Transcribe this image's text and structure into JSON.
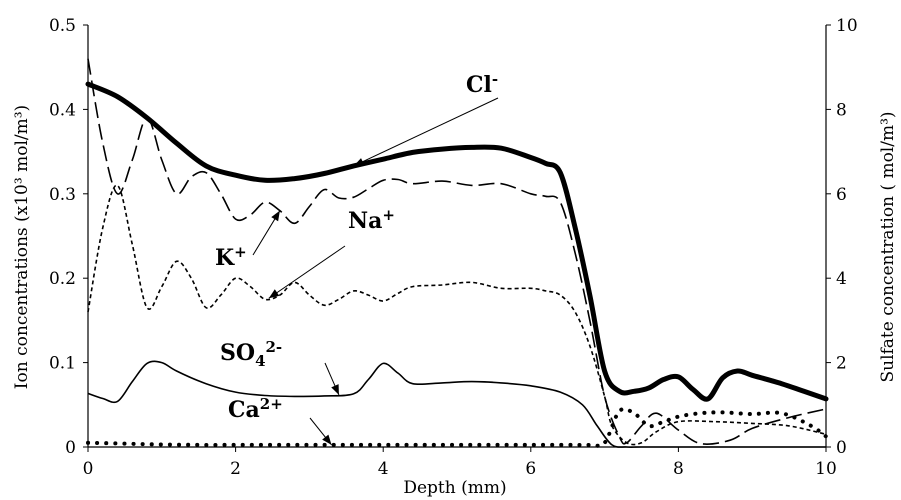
{
  "chart_data": {
    "type": "line",
    "xlabel": "Depth (mm)",
    "ylabel_left": "Ion concentrations (x10³ mol/m³)",
    "ylabel_right": "Sulfate concentration ( mol/m³)",
    "xlim": [
      0,
      10
    ],
    "ylim_left": [
      0,
      0.5
    ],
    "ylim_right": [
      0,
      10
    ],
    "x_ticks": [
      "0",
      "2",
      "4",
      "6",
      "8",
      "10"
    ],
    "y_ticks_left": [
      "0",
      "0.1",
      "0.2",
      "0.3",
      "0.4",
      "0.5"
    ],
    "y_ticks_right": [
      "0",
      "2",
      "4",
      "6",
      "8",
      "10"
    ],
    "grid": false,
    "legend": "none",
    "series": [
      {
        "name": "Cl-",
        "axis": "left",
        "style": "thick-solid",
        "x": [
          0,
          0.4,
          0.8,
          1.2,
          1.6,
          2.0,
          2.4,
          2.8,
          3.2,
          3.6,
          4.0,
          4.4,
          4.8,
          5.2,
          5.6,
          6.0,
          6.2,
          6.4,
          6.6,
          6.8,
          7.0,
          7.2,
          7.4,
          7.6,
          7.8,
          8.0,
          8.2,
          8.4,
          8.6,
          8.8,
          9.0,
          9.4,
          9.7,
          10.0
        ],
        "y": [
          0.43,
          0.415,
          0.39,
          0.36,
          0.333,
          0.322,
          0.316,
          0.318,
          0.324,
          0.333,
          0.341,
          0.349,
          0.353,
          0.355,
          0.354,
          0.343,
          0.336,
          0.325,
          0.26,
          0.18,
          0.09,
          0.066,
          0.066,
          0.07,
          0.08,
          0.083,
          0.068,
          0.057,
          0.082,
          0.09,
          0.085,
          0.075,
          0.066,
          0.057
        ]
      },
      {
        "name": "K+",
        "axis": "left",
        "style": "long-dash",
        "x": [
          0,
          0.2,
          0.4,
          0.6,
          0.8,
          1.0,
          1.2,
          1.4,
          1.6,
          1.8,
          2.0,
          2.2,
          2.4,
          2.6,
          2.8,
          3.0,
          3.2,
          3.4,
          3.6,
          3.8,
          4.0,
          4.2,
          4.4,
          4.8,
          5.2,
          5.6,
          6.0,
          6.2,
          6.4,
          6.6,
          6.8,
          7.0,
          7.2,
          7.3,
          7.5,
          7.7,
          8.0,
          8.3,
          8.7,
          9.0,
          9.5,
          10.0
        ],
        "y": [
          0.46,
          0.36,
          0.3,
          0.34,
          0.39,
          0.34,
          0.3,
          0.32,
          0.325,
          0.3,
          0.27,
          0.275,
          0.29,
          0.28,
          0.265,
          0.285,
          0.305,
          0.295,
          0.296,
          0.306,
          0.316,
          0.317,
          0.312,
          0.315,
          0.31,
          0.312,
          0.3,
          0.297,
          0.29,
          0.23,
          0.15,
          0.06,
          0.012,
          0.005,
          0.025,
          0.04,
          0.02,
          0.004,
          0.008,
          0.022,
          0.035,
          0.045
        ]
      },
      {
        "name": "Na+",
        "axis": "left",
        "style": "short-dash",
        "x": [
          0,
          0.2,
          0.4,
          0.6,
          0.8,
          1.0,
          1.2,
          1.4,
          1.6,
          1.8,
          2.0,
          2.2,
          2.4,
          2.6,
          2.8,
          3.0,
          3.2,
          3.4,
          3.6,
          3.8,
          4.0,
          4.2,
          4.4,
          4.8,
          5.2,
          5.6,
          6.0,
          6.2,
          6.4,
          6.6,
          6.8,
          7.0,
          7.1,
          7.3,
          7.5,
          7.7,
          8.0,
          8.5,
          9.0,
          9.5,
          10.0
        ],
        "y": [
          0.16,
          0.26,
          0.31,
          0.24,
          0.165,
          0.19,
          0.22,
          0.2,
          0.165,
          0.18,
          0.2,
          0.19,
          0.175,
          0.18,
          0.195,
          0.18,
          0.168,
          0.175,
          0.185,
          0.18,
          0.173,
          0.182,
          0.19,
          0.192,
          0.195,
          0.188,
          0.188,
          0.185,
          0.18,
          0.16,
          0.12,
          0.06,
          0.025,
          0.005,
          0.005,
          0.018,
          0.03,
          0.03,
          0.028,
          0.025,
          0.015
        ]
      },
      {
        "name": "SO4 2-",
        "axis": "right",
        "style": "solid",
        "x": [
          0,
          0.2,
          0.4,
          0.6,
          0.8,
          1.0,
          1.2,
          1.6,
          2.0,
          2.4,
          2.8,
          3.2,
          3.6,
          3.8,
          4.0,
          4.2,
          4.4,
          4.8,
          5.2,
          5.6,
          6.0,
          6.4,
          6.7,
          6.9,
          7.1,
          7.3,
          7.5,
          8.0,
          8.5,
          9.0,
          9.5,
          10.0
        ],
        "y": [
          1.27,
          1.15,
          1.08,
          1.55,
          1.98,
          2.0,
          1.8,
          1.5,
          1.3,
          1.22,
          1.2,
          1.21,
          1.26,
          1.6,
          1.98,
          1.75,
          1.5,
          1.52,
          1.55,
          1.52,
          1.45,
          1.3,
          1.0,
          0.5,
          0.05,
          0.0,
          0.0,
          0.0,
          0.0,
          0.0,
          0.0,
          0.0
        ]
      },
      {
        "name": "Ca2+",
        "axis": "right",
        "style": "dotted",
        "x": [
          0,
          0.5,
          1,
          1.5,
          2,
          2.5,
          3,
          3.5,
          4,
          4.5,
          5,
          5.5,
          6,
          6.5,
          6.8,
          7.0,
          7.2,
          7.4,
          7.6,
          7.8,
          8.0,
          8.3,
          8.6,
          9.0,
          9.4,
          9.8,
          10.0
        ],
        "y": [
          0.1,
          0.08,
          0.06,
          0.05,
          0.05,
          0.05,
          0.05,
          0.05,
          0.05,
          0.05,
          0.05,
          0.05,
          0.05,
          0.05,
          0.05,
          0.1,
          0.85,
          0.8,
          0.5,
          0.6,
          0.72,
          0.8,
          0.82,
          0.78,
          0.8,
          0.5,
          0.25
        ]
      }
    ],
    "annotations": [
      {
        "text": "Cl",
        "sup": "-",
        "target_series": "Cl-"
      },
      {
        "text": "K",
        "sup": "+",
        "target_series": "K+"
      },
      {
        "text": "Na",
        "sup": "+",
        "target_series": "Na+"
      },
      {
        "text": "SO",
        "sub": "4",
        "sup": "2-",
        "target_series": "SO4 2-"
      },
      {
        "text": "Ca",
        "sup": "2+",
        "target_series": "Ca2+"
      }
    ]
  }
}
